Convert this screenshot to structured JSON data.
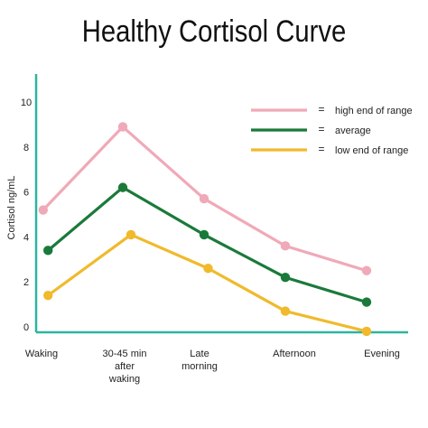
{
  "chart_data": {
    "type": "line",
    "title": "Healthy Cortisol Curve",
    "ylabel": "Cortisol ng/mL",
    "xlabel": "",
    "categories": [
      [
        "Waking"
      ],
      [
        "30-45 min",
        "after",
        "waking"
      ],
      [
        "Late",
        "morning"
      ],
      [
        "Afternoon"
      ],
      [
        "Evening"
      ]
    ],
    "ylim": [
      0,
      10
    ],
    "yticks": [
      0,
      2,
      4,
      6,
      8,
      10
    ],
    "grid": false,
    "legend_position": "top-right",
    "legend_separator": "=",
    "series": [
      {
        "name": "high end of range",
        "color": "#f0a9b8",
        "x": [
          0.02,
          1.0,
          2.0,
          3.0,
          4.0
        ],
        "values": [
          5.2,
          8.9,
          5.7,
          3.6,
          2.5
        ]
      },
      {
        "name": "average",
        "color": "#1a7a3a",
        "x": [
          0.08,
          1.0,
          2.0,
          3.0,
          4.0
        ],
        "values": [
          3.4,
          6.2,
          4.1,
          2.2,
          1.1
        ]
      },
      {
        "name": "low end of range",
        "color": "#f0ba2c",
        "x": [
          0.08,
          1.1,
          2.05,
          3.0,
          4.0
        ],
        "values": [
          1.4,
          4.1,
          2.6,
          0.7,
          -0.2
        ]
      }
    ],
    "axis_color": "#2bb5a0"
  }
}
